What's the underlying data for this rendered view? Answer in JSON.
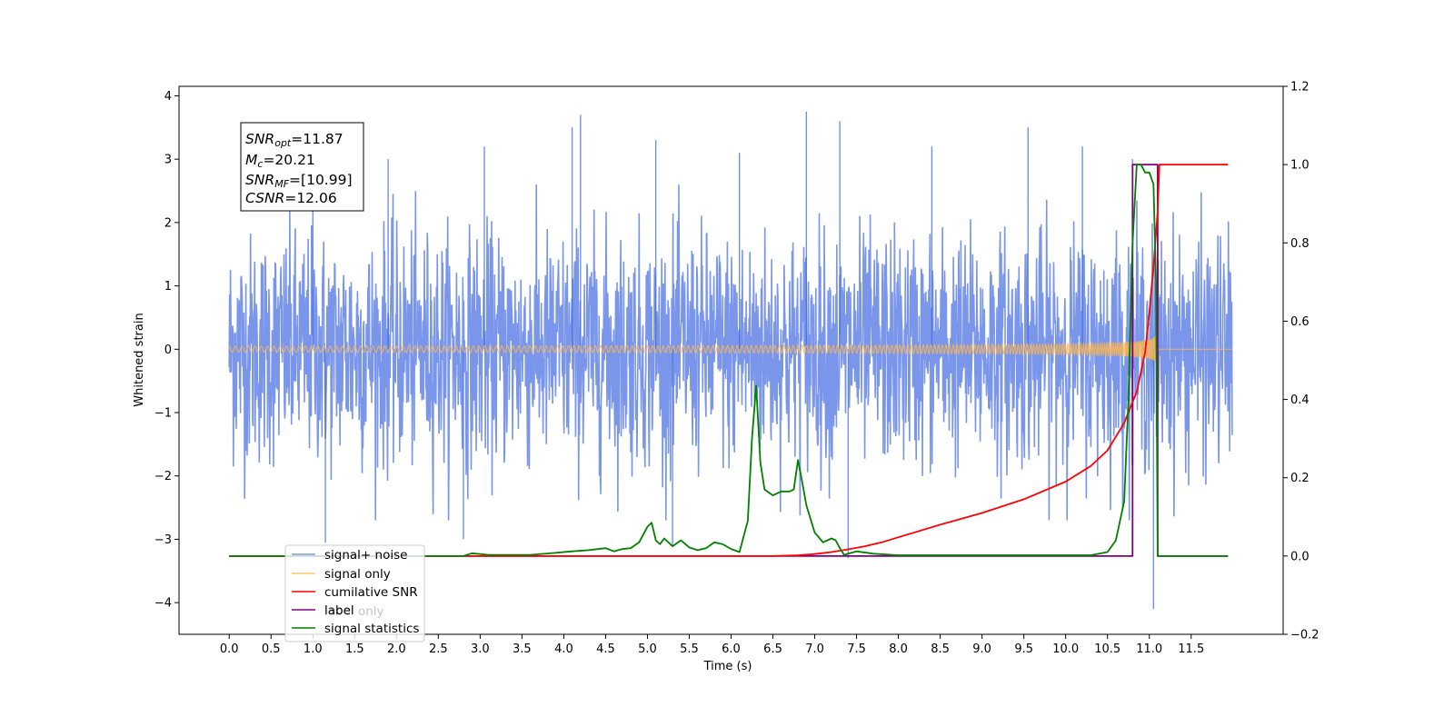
{
  "chart_data": {
    "type": "line",
    "xlabel": "Time (s)",
    "ylabel": "Whitened strain",
    "xlim": [
      -0.6,
      12.6
    ],
    "ylim_left": [
      -4.5,
      4.15
    ],
    "ylim_right": [
      -0.2,
      1.2
    ],
    "x_ticks": [
      0.0,
      0.5,
      1.0,
      1.5,
      2.0,
      2.5,
      3.0,
      3.5,
      4.0,
      4.5,
      5.0,
      5.5,
      6.0,
      6.5,
      7.0,
      7.5,
      8.0,
      8.5,
      9.0,
      9.5,
      10.0,
      10.5,
      11.0,
      11.5
    ],
    "x_tick_labels": [
      "0.0",
      "0.5",
      "1.0",
      "1.5",
      "2.0",
      "2.5",
      "3.0",
      "3.5",
      "4.0",
      "4.5",
      "5.0",
      "5.5",
      "6.0",
      "6.5",
      "7.0",
      "7.5",
      "8.0",
      "8.5",
      "9.0",
      "9.5",
      "10.0",
      "10.5",
      "11.0",
      "11.5"
    ],
    "y_left_ticks": [
      -4,
      -3,
      -2,
      -1,
      0,
      1,
      2,
      3,
      4
    ],
    "y_left_tick_labels": [
      "−4",
      "−3",
      "−2",
      "−1",
      "0",
      "1",
      "2",
      "3",
      "4"
    ],
    "y_right_ticks": [
      -0.2,
      0.0,
      0.2,
      0.4,
      0.6,
      0.8,
      1.0,
      1.2
    ],
    "y_right_tick_labels": [
      "−0.2",
      "0.0",
      "0.2",
      "0.4",
      "0.6",
      "0.8",
      "1.0",
      "1.2"
    ],
    "grid": false,
    "legend_position": "lower-left",
    "annotation": {
      "lines": [
        {
          "var": "SNR",
          "sub": "opt",
          "value": "=11.87"
        },
        {
          "var": "M",
          "sub": "c",
          "value": "=20.21"
        },
        {
          "var": "SNR",
          "sub": "MF",
          "value": "=[10.99]"
        },
        {
          "var": "CSNR",
          "sub": "",
          "value": "=12.06"
        }
      ]
    },
    "series": [
      {
        "name": "signal+ noise",
        "color": "#4169e1",
        "axis": "left",
        "style": "noise",
        "x_range": [
          0.0,
          11.99
        ],
        "amplitude_typical": 2.0,
        "peaks": [
          [
            1.0,
            2.7
          ],
          [
            1.9,
            3.0
          ],
          [
            3.05,
            3.2
          ],
          [
            4.1,
            3.5
          ],
          [
            4.2,
            3.7
          ],
          [
            5.1,
            3.3
          ],
          [
            6.1,
            3.1
          ],
          [
            6.9,
            3.75
          ],
          [
            7.3,
            3.6
          ],
          [
            8.4,
            3.2
          ],
          [
            9.55,
            3.5
          ],
          [
            10.2,
            3.2
          ],
          [
            10.8,
            3.0
          ],
          [
            11.05,
            -4.1
          ],
          [
            7.4,
            -3.3
          ],
          [
            5.3,
            -3.1
          ],
          [
            2.8,
            -3.0
          ],
          [
            1.15,
            -3.05
          ]
        ]
      },
      {
        "name": "signal only",
        "color": "#ffb74d",
        "axis": "left",
        "style": "chirp",
        "x_range": [
          0.0,
          11.99
        ],
        "merger_time": 11.1,
        "peak_amplitude": 0.6
      },
      {
        "name": "cumilative SNR",
        "color": "#ff0000",
        "axis": "right",
        "x": [
          0.0,
          6.5,
          6.8,
          7.0,
          7.2,
          7.4,
          7.6,
          7.8,
          8.0,
          8.5,
          9.0,
          9.5,
          10.0,
          10.3,
          10.5,
          10.7,
          10.85,
          10.95,
          11.0,
          11.05,
          11.1,
          11.12,
          11.94
        ],
        "y": [
          0.0,
          0.0,
          0.002,
          0.005,
          0.01,
          0.017,
          0.025,
          0.035,
          0.048,
          0.08,
          0.11,
          0.145,
          0.19,
          0.23,
          0.27,
          0.34,
          0.42,
          0.52,
          0.62,
          0.74,
          0.88,
          1.0,
          1.0
        ]
      },
      {
        "name": "label",
        "color": "#800080",
        "axis": "right",
        "x": [
          0.0,
          10.8,
          10.8,
          11.1,
          11.1,
          11.94
        ],
        "y": [
          0.0,
          0.0,
          1.0,
          1.0,
          0.0,
          0.0
        ]
      },
      {
        "name": "label only",
        "color": "#800080",
        "axis": "right",
        "x": [],
        "y": []
      },
      {
        "name": "signal statistics",
        "color": "#008000",
        "axis": "right",
        "x": [
          0.0,
          2.8,
          2.9,
          3.1,
          3.3,
          3.6,
          3.9,
          4.1,
          4.3,
          4.5,
          4.6,
          4.7,
          4.8,
          4.9,
          5.0,
          5.05,
          5.1,
          5.15,
          5.2,
          5.3,
          5.4,
          5.5,
          5.6,
          5.7,
          5.8,
          5.9,
          6.0,
          6.1,
          6.2,
          6.25,
          6.3,
          6.35,
          6.4,
          6.5,
          6.6,
          6.7,
          6.75,
          6.8,
          6.85,
          6.9,
          7.0,
          7.1,
          7.2,
          7.25,
          7.3,
          7.35,
          7.4,
          7.5,
          7.7,
          8.0,
          9.7,
          10.0,
          10.3,
          10.5,
          10.6,
          10.7,
          10.75,
          10.8,
          10.85,
          10.9,
          10.95,
          11.0,
          11.05,
          11.08,
          11.1,
          11.94
        ],
        "y": [
          0.0,
          0.0,
          0.007,
          0.003,
          0.003,
          0.003,
          0.008,
          0.012,
          0.015,
          0.02,
          0.012,
          0.018,
          0.02,
          0.035,
          0.075,
          0.085,
          0.04,
          0.03,
          0.045,
          0.025,
          0.04,
          0.022,
          0.015,
          0.02,
          0.035,
          0.03,
          0.018,
          0.01,
          0.09,
          0.3,
          0.435,
          0.24,
          0.17,
          0.155,
          0.165,
          0.165,
          0.17,
          0.245,
          0.19,
          0.13,
          0.06,
          0.035,
          0.045,
          0.04,
          0.02,
          0.003,
          0.006,
          0.012,
          0.006,
          0.002,
          0.002,
          0.002,
          0.002,
          0.01,
          0.04,
          0.14,
          0.4,
          0.8,
          1.0,
          1.0,
          0.98,
          0.98,
          0.95,
          0.7,
          0.0,
          0.0
        ]
      }
    ]
  }
}
